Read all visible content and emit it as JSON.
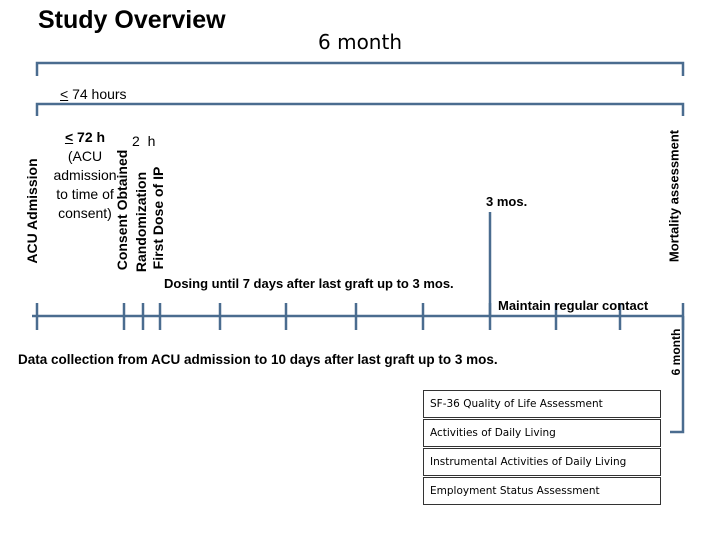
{
  "title": "Study Overview",
  "six_month_top": "6 month",
  "six_month_side": "6 month",
  "hours74": {
    "sign": "<",
    "rest": " 74 hours"
  },
  "h72": {
    "line1_sign": "<",
    "line1_rest": " 72 h",
    "line2": "(ACU",
    "line3": "admission",
    "line4": "to time of",
    "line5": "consent)"
  },
  "two_h": "2 h",
  "vertical_labels": {
    "acu_admission": "ACU Admission",
    "consent": "Consent Obtained",
    "randomization": "Randomization",
    "first_dose": "First Dose of IP",
    "mortality": "Mortality assessment"
  },
  "three_mos": "3 mos.",
  "dosing": "Dosing until 7 days after last graft up to 3 mos.",
  "maintain_contact": "Maintain regular contact",
  "data_collection": "Data collection from ACU admission to 10 days after last graft up to 3 mos.",
  "assessments": [
    "SF-36 Quality of Life Assessment",
    "Activities of Daily Living",
    "Instrumental Activities of Daily Living",
    "Employment Status Assessment"
  ],
  "colors": {
    "timeline": "#4a6c8f",
    "bracket": "#4a6c8f",
    "box_border": "#333333"
  }
}
